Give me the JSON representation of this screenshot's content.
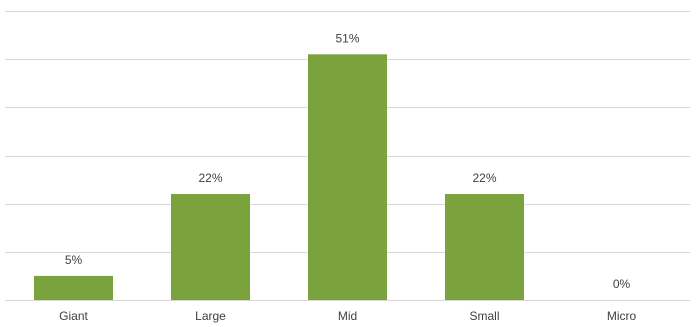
{
  "chart_data": {
    "type": "bar",
    "title": "",
    "xlabel": "",
    "ylabel": "",
    "categories": [
      "Giant",
      "Large",
      "Mid",
      "Small",
      "Micro"
    ],
    "values": [
      5,
      22,
      51,
      22,
      0
    ],
    "value_labels": [
      "5%",
      "22%",
      "51%",
      "22%",
      "0%"
    ],
    "unit": "%",
    "ylim": [
      0,
      60
    ],
    "y_gridlines": [
      0,
      10,
      20,
      30,
      40,
      50,
      60
    ],
    "grid": true,
    "legend": "none",
    "bar_color": "#7aa33d",
    "grid_color": "#d9d9d9",
    "text_color": "#404040"
  }
}
